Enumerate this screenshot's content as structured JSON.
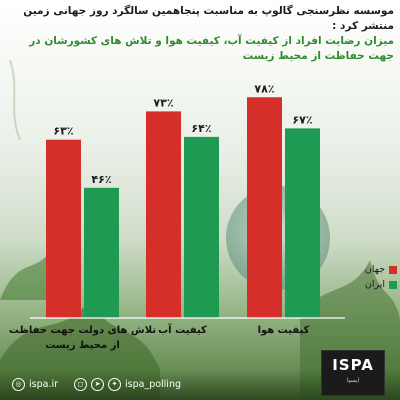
{
  "headline": {
    "line1": "موسسه نظرسنجی گالوپ به مناسبت پنجاهمین سالگرد روز جهانی زمین منتشر کرد :",
    "line2": "میزان رضایت افراد از کیفیت آب، کیفیت هوا و تلاش های کشورشان در جهت حفاظت از محیط زیست"
  },
  "colors": {
    "world": "#d62f2a",
    "iran": "#1f9a52",
    "value_text": "#1c1c1c"
  },
  "chart_data": {
    "type": "bar",
    "categories": [
      [
        "تلاش های دولت جهت حفاظت",
        "از محیط زیست"
      ],
      [
        "کیفیت آب"
      ],
      [
        "کیفیت هوا"
      ]
    ],
    "series": [
      {
        "name": "جهان",
        "values": [
          63,
          73,
          78
        ],
        "labels": [
          "۶۳٪",
          "۷۳٪",
          "۷۸٪"
        ]
      },
      {
        "name": "ایران",
        "values": [
          46,
          64,
          67
        ],
        "labels": [
          "۴۶٪",
          "۶۴٪",
          "۶۷٪"
        ]
      }
    ],
    "ylim": [
      0,
      100
    ],
    "legend_position": "right"
  },
  "footer": {
    "website": "ispa.ir",
    "social": "ispa_polling",
    "icons": [
      "globe-icon",
      "instagram-icon",
      "telegram-icon",
      "twitter-icon"
    ]
  },
  "logo": {
    "name": "ISPA",
    "sub": "ایسپا"
  }
}
